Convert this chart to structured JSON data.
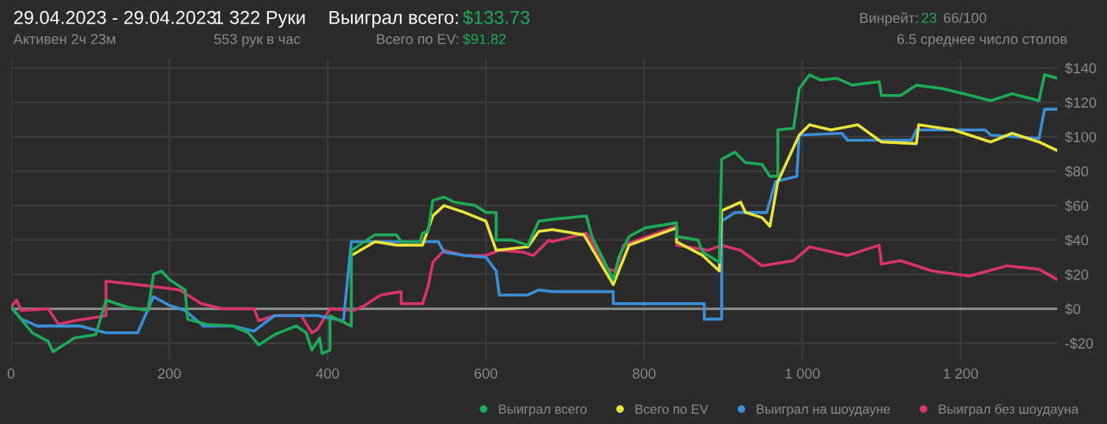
{
  "chart_data": {
    "type": "line",
    "title": "29.04.2023 - 29.04.2023",
    "subtitle": "Активен 2ч 23м",
    "annotations": [
      "1 322 Руки",
      "553 рук в час",
      "Выиграл всего:",
      "$133.73",
      "Всего по EV:",
      "$91.82",
      "Винрейт:",
      "23",
      "66/100",
      "6.5 среднее число столов"
    ],
    "xlim": [
      0,
      1322
    ],
    "xticks": [
      0,
      200,
      400,
      600,
      800,
      {
        "value": 1000,
        "label": "1 000"
      },
      {
        "value": 1200,
        "label": "1 200"
      }
    ],
    "ylim": [
      -30,
      145
    ],
    "yticks": [
      {
        "value": -20,
        "label": "-$20"
      },
      {
        "value": 0,
        "label": "$0"
      },
      {
        "value": 20,
        "label": "$20"
      },
      {
        "value": 40,
        "label": "$40"
      },
      {
        "value": 60,
        "label": "$60"
      },
      {
        "value": 80,
        "label": "$80"
      },
      {
        "value": 100,
        "label": "$100"
      },
      {
        "value": 120,
        "label": "$120"
      },
      {
        "value": 140,
        "label": "$140"
      }
    ],
    "grid": true,
    "legend": "bottom right",
    "ref_lines": [
      {
        "axis": "y",
        "value": 0,
        "color": "#8a8a8a"
      }
    ],
    "series": [
      {
        "name": "Выиграл всего",
        "color": "#1faa59",
        "x": [
          0,
          7,
          27,
          47,
          53,
          80,
          107,
          120,
          147,
          173,
          180,
          190,
          200,
          220,
          223,
          247,
          280,
          300,
          313,
          333,
          360,
          373,
          380,
          390,
          393,
          403,
          403,
          430,
          430,
          460,
          487,
          493,
          517,
          520,
          527,
          533,
          547,
          560,
          587,
          600,
          613,
          613,
          633,
          653,
          667,
          684,
          727,
          734,
          761,
          768,
          781,
          801,
          841,
          841,
          868,
          874,
          895,
          898,
          915,
          928,
          949,
          959,
          969,
          969,
          989,
          996,
          1009,
          1023,
          1043,
          1063,
          1097,
          1100,
          1124,
          1144,
          1177,
          1204,
          1238,
          1265,
          1299,
          1306,
          1322
        ],
        "values": [
          1,
          -3,
          -14,
          -19,
          -25,
          -17,
          -15,
          5,
          1,
          -1,
          20,
          22,
          17,
          11,
          -6,
          -9,
          -10,
          -14,
          -21,
          -15,
          -10,
          -14,
          -24,
          -17,
          -26,
          -24,
          -4,
          -10,
          34,
          43,
          43,
          39,
          39,
          44,
          45,
          63,
          65,
          62,
          60,
          56,
          56,
          40,
          40,
          37,
          51,
          52,
          54,
          42,
          17,
          30,
          42,
          47,
          50,
          42,
          40,
          33,
          27,
          87,
          91,
          85,
          84,
          77,
          77,
          104,
          105,
          128,
          136,
          133,
          134,
          130,
          132,
          124,
          124,
          130,
          128,
          125,
          121,
          125,
          121,
          136,
          134
        ]
      },
      {
        "name": "Всего по EV",
        "color": "#e8e43c",
        "x": [
          430,
          460,
          487,
          520,
          533,
          547,
          573,
          600,
          613,
          653,
          667,
          684,
          724,
          761,
          781,
          841,
          841,
          874,
          895,
          898,
          922,
          928,
          949,
          959,
          969,
          996,
          1009,
          1036,
          1070,
          1100,
          1144,
          1147,
          1191,
          1238,
          1265,
          1299,
          1322
        ],
        "values": [
          31,
          39,
          37,
          37,
          54,
          60,
          56,
          51,
          34,
          36,
          45,
          46,
          43,
          14,
          37,
          47,
          39,
          31,
          22,
          57,
          62,
          56,
          53,
          48,
          74,
          101,
          107,
          104,
          107,
          97,
          96,
          107,
          104,
          97,
          102,
          97,
          92
        ]
      },
      {
        "name": "Выиграл на шоудауне",
        "color": "#3a8fd8",
        "x": [
          0,
          13,
          33,
          87,
          120,
          160,
          180,
          200,
          220,
          243,
          280,
          307,
          333,
          387,
          420,
          430,
          540,
          547,
          573,
          600,
          613,
          617,
          653,
          667,
          684,
          761,
          761,
          876,
          876,
          898,
          898,
          915,
          955,
          966,
          993,
          996,
          1050,
          1057,
          1138,
          1144,
          1231,
          1238,
          1299,
          1306,
          1322
        ],
        "values": [
          1,
          -6,
          -10,
          -10,
          -14,
          -14,
          7,
          2,
          -1,
          -10,
          -10,
          -13,
          -4,
          -4,
          -7,
          39,
          39,
          33,
          31,
          30,
          22,
          8,
          8,
          11,
          10,
          10,
          3,
          3,
          -6,
          -6,
          51,
          56,
          56,
          74,
          77,
          101,
          102,
          98,
          98,
          104,
          104,
          101,
          99,
          116,
          116
        ]
      },
      {
        "name": "Выиграл без шоудауна",
        "color": "#d8336a",
        "x": [
          0,
          7,
          13,
          47,
          60,
          80,
          120,
          120,
          160,
          180,
          213,
          240,
          267,
          307,
          313,
          333,
          367,
          380,
          387,
          403,
          433,
          447,
          467,
          493,
          493,
          520,
          527,
          533,
          547,
          573,
          600,
          617,
          647,
          660,
          680,
          684,
          727,
          754,
          764,
          774,
          841,
          841,
          881,
          898,
          922,
          949,
          989,
          1009,
          1057,
          1097,
          1100,
          1124,
          1164,
          1211,
          1258,
          1299,
          1322
        ],
        "values": [
          1,
          5,
          -1,
          0,
          -9,
          -7,
          -4,
          16,
          14,
          13,
          11,
          3,
          0,
          0,
          -7,
          -4,
          -4,
          -14,
          -12,
          0,
          -1,
          2,
          8,
          10,
          3,
          3,
          13,
          27,
          34,
          31,
          31,
          34,
          33,
          31,
          40,
          39,
          44,
          23,
          22,
          37,
          48,
          37,
          34,
          37,
          34,
          25,
          28,
          36,
          31,
          37,
          26,
          28,
          22,
          19,
          25,
          23,
          17
        ]
      }
    ]
  }
}
